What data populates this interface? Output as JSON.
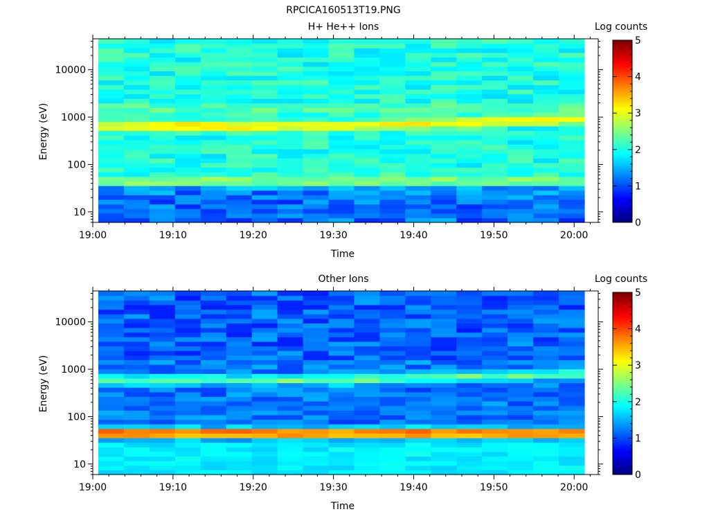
{
  "figure": {
    "title": "RPCICA160513T19.PNG"
  },
  "chart_data": [
    {
      "type": "heatmap",
      "title": "H+ He++ Ions",
      "xlabel": "Time",
      "ylabel": "Energy (eV)",
      "x_ticks": [
        "19:00",
        "19:10",
        "19:20",
        "19:30",
        "19:40",
        "19:50",
        "20:00"
      ],
      "x_range": [
        "19:00",
        "20:03"
      ],
      "y_scale": "log",
      "y_ticks": [
        "10",
        "100",
        "1000",
        "10000"
      ],
      "y_range": [
        6,
        45000
      ],
      "colorbar": {
        "label": "Log counts",
        "range": [
          0,
          5
        ],
        "ticks": [
          "0",
          "1",
          "2",
          "3",
          "4",
          "5"
        ]
      },
      "time_bins": 19,
      "energy_bins": 40,
      "features": [
        {
          "energy_ev": 650,
          "level": 3.3,
          "note": "main band",
          "drift_to_ev": 900
        },
        {
          "energy_ev": 45,
          "level": 2.6,
          "note": "low band"
        },
        {
          "energy_ev": 1500,
          "level": 2.3
        },
        {
          "energy_ev": 10,
          "level": 1.1,
          "note": "low energy floor"
        }
      ],
      "background_level": 2.0
    },
    {
      "type": "heatmap",
      "title": "Other Ions",
      "xlabel": "Time",
      "ylabel": "Energy (eV)",
      "x_ticks": [
        "19:00",
        "19:10",
        "19:20",
        "19:30",
        "19:40",
        "19:50",
        "20:00"
      ],
      "x_range": [
        "19:00",
        "20:03"
      ],
      "y_scale": "log",
      "y_ticks": [
        "10",
        "100",
        "1000",
        "10000"
      ],
      "y_range": [
        6,
        45000
      ],
      "colorbar": {
        "label": "Log counts",
        "range": [
          0,
          5
        ],
        "ticks": [
          "0",
          "1",
          "2",
          "3",
          "4",
          "5"
        ]
      },
      "time_bins": 19,
      "energy_bins": 40,
      "features": [
        {
          "energy_ev": 45,
          "level": 4.3,
          "note": "intense band"
        },
        {
          "energy_ev": 600,
          "level": 2.4,
          "drift_to_ev": 800
        },
        {
          "energy_ev": 15,
          "level": 1.8
        }
      ],
      "background_level": 1.2
    }
  ]
}
